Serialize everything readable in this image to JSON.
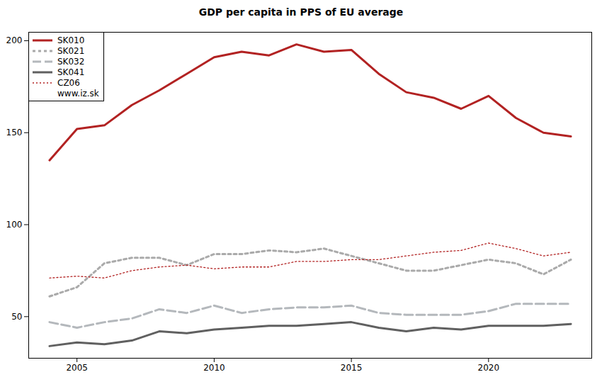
{
  "chart_data": {
    "type": "line",
    "title": "GDP per capita in PPS of EU average",
    "x": [
      2004,
      2005,
      2006,
      2007,
      2008,
      2009,
      2010,
      2011,
      2012,
      2013,
      2014,
      2015,
      2016,
      2017,
      2018,
      2019,
      2020,
      2021,
      2022,
      2023
    ],
    "series": [
      {
        "name": "SK010",
        "color": "#b22222",
        "line_style": "solid",
        "values": [
          135,
          152,
          154,
          165,
          173,
          182,
          191,
          194,
          192,
          198,
          194,
          195,
          182,
          172,
          169,
          163,
          170,
          158,
          150,
          148
        ]
      },
      {
        "name": "SK021",
        "color": "#aaaaaa",
        "line_style": "dashed",
        "values": [
          61,
          66,
          79,
          82,
          82,
          78,
          84,
          84,
          86,
          85,
          87,
          83,
          79,
          75,
          75,
          78,
          81,
          79,
          73,
          81
        ]
      },
      {
        "name": "SK032",
        "color": "#b4b8bc",
        "line_style": "longdash",
        "values": [
          47,
          44,
          47,
          49,
          54,
          52,
          56,
          52,
          54,
          55,
          55,
          56,
          52,
          51,
          51,
          51,
          53,
          57,
          57,
          57
        ]
      },
      {
        "name": "SK041",
        "color": "#606060",
        "line_style": "solid",
        "values": [
          34,
          36,
          35,
          37,
          42,
          41,
          43,
          44,
          45,
          45,
          46,
          47,
          44,
          42,
          44,
          43,
          45,
          45,
          45,
          46
        ]
      },
      {
        "name": "CZ06",
        "color": "#b22222",
        "line_style": "dotted",
        "values": [
          71,
          72,
          71,
          75,
          77,
          78,
          76,
          77,
          77,
          80,
          80,
          81,
          81,
          83,
          85,
          86,
          90,
          87,
          83,
          85
        ]
      }
    ],
    "annotations": [
      "www.iz.sk"
    ],
    "xlim": [
      2003.24,
      2023.76
    ],
    "xticks": [
      2005,
      2010,
      2015,
      2020
    ],
    "ylim": [
      27.4,
      204.6
    ],
    "yticks": [
      50,
      100,
      150,
      200
    ],
    "grid": false,
    "legend": "top-left"
  }
}
